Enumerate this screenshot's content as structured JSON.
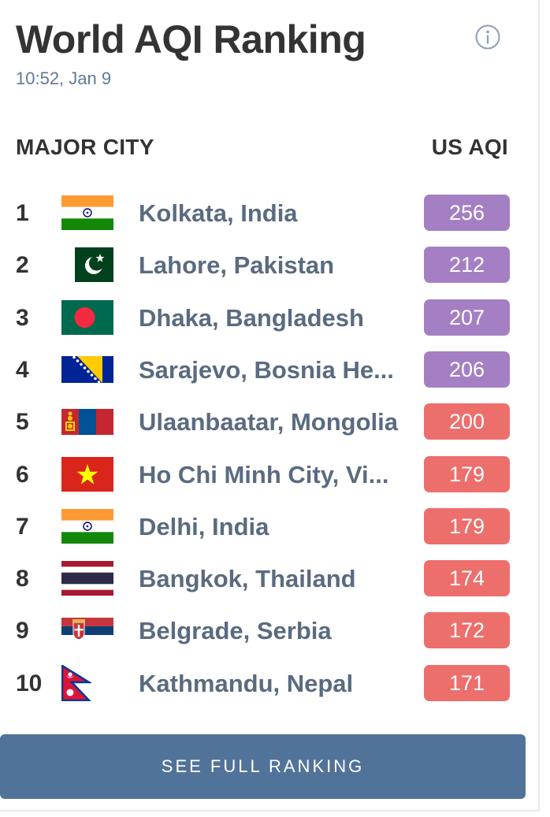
{
  "header": {
    "title": "World AQI Ranking",
    "timestamp": "10:52, Jan 9",
    "info_icon": "info-icon"
  },
  "columns": {
    "city": "MAJOR CITY",
    "aqi": "US AQI"
  },
  "colors": {
    "very_unhealthy": "#a57fc4",
    "unhealthy": "#ec6f6c",
    "button": "#527399"
  },
  "rankings": [
    {
      "rank": "1",
      "city": "Kolkata, India",
      "aqi": "256",
      "flag": "india",
      "level": "very_unhealthy"
    },
    {
      "rank": "2",
      "city": "Lahore, Pakistan",
      "aqi": "212",
      "flag": "pakistan",
      "level": "very_unhealthy"
    },
    {
      "rank": "3",
      "city": "Dhaka, Bangladesh",
      "aqi": "207",
      "flag": "bangladesh",
      "level": "very_unhealthy"
    },
    {
      "rank": "4",
      "city": "Sarajevo, Bosnia He...",
      "aqi": "206",
      "flag": "bosnia",
      "level": "very_unhealthy"
    },
    {
      "rank": "5",
      "city": "Ulaanbaatar, Mongolia",
      "aqi": "200",
      "flag": "mongolia",
      "level": "unhealthy"
    },
    {
      "rank": "6",
      "city": "Ho Chi Minh City, Vi...",
      "aqi": "179",
      "flag": "vietnam",
      "level": "unhealthy"
    },
    {
      "rank": "7",
      "city": "Delhi, India",
      "aqi": "179",
      "flag": "india",
      "level": "unhealthy"
    },
    {
      "rank": "8",
      "city": "Bangkok, Thailand",
      "aqi": "174",
      "flag": "thailand",
      "level": "unhealthy"
    },
    {
      "rank": "9",
      "city": "Belgrade, Serbia",
      "aqi": "172",
      "flag": "serbia",
      "level": "unhealthy"
    },
    {
      "rank": "10",
      "city": "Kathmandu, Nepal",
      "aqi": "171",
      "flag": "nepal",
      "level": "unhealthy"
    }
  ],
  "footer": {
    "button_label": "SEE FULL RANKING"
  }
}
